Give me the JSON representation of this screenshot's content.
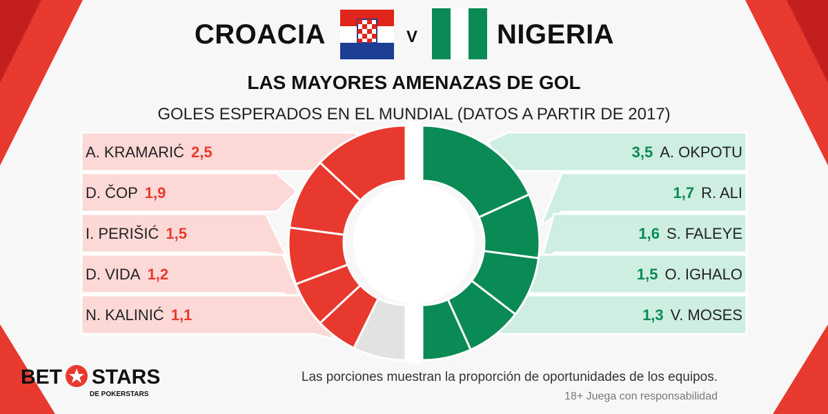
{
  "header": {
    "team_left": "CROACIA",
    "vs": "V",
    "team_right": "NIGERIA",
    "title": "LAS MAYORES AMENAZAS DE GOL",
    "subtitle": "GOLES ESPERADOS EN EL MUNDIAL (DATOS A PARTIR DE 2017)"
  },
  "chart_data": {
    "type": "pie",
    "subtype": "split-donut",
    "title": "LAS MAYORES AMENAZAS DE GOL",
    "subtitle": "GOLES ESPERADOS EN EL MUNDIAL (DATOS A PARTIR DE 2017)",
    "series": [
      {
        "name": "CROACIA",
        "color": "#e8392e",
        "players": [
          "A. KRAMARIĆ",
          "D. ČOP",
          "I. PERIŠIĆ",
          "D. VIDA",
          "N. KALINIĆ"
        ],
        "values": [
          2.5,
          1.9,
          1.5,
          1.2,
          1.1
        ],
        "labels": [
          "2,5",
          "1,9",
          "1,5",
          "1,2",
          "1,1"
        ]
      },
      {
        "name": "NIGERIA",
        "color": "#0a8a55",
        "players": [
          "A. OKPOTU",
          "R. ALI",
          "S. FALEYE",
          "O. IGHALO",
          "V. MOSES"
        ],
        "values": [
          3.5,
          1.7,
          1.6,
          1.5,
          1.3
        ],
        "labels": [
          "3,5",
          "1,7",
          "1,6",
          "1,5",
          "1,3"
        ]
      }
    ]
  },
  "footer": {
    "note": "Las porciones muestran la proporción de oportunidades de los equipos.",
    "responsible": "18+ Juega con responsabilidad",
    "logo_bet": "BET",
    "logo_stars": "STARS",
    "logo_sub": "DE POKERSTARS"
  },
  "colors": {
    "red": "#e8392e",
    "green": "#0a8a55",
    "pink_band": "#fcd9d6",
    "green_band": "#cdeee1",
    "grey": "#e2e2e2"
  }
}
